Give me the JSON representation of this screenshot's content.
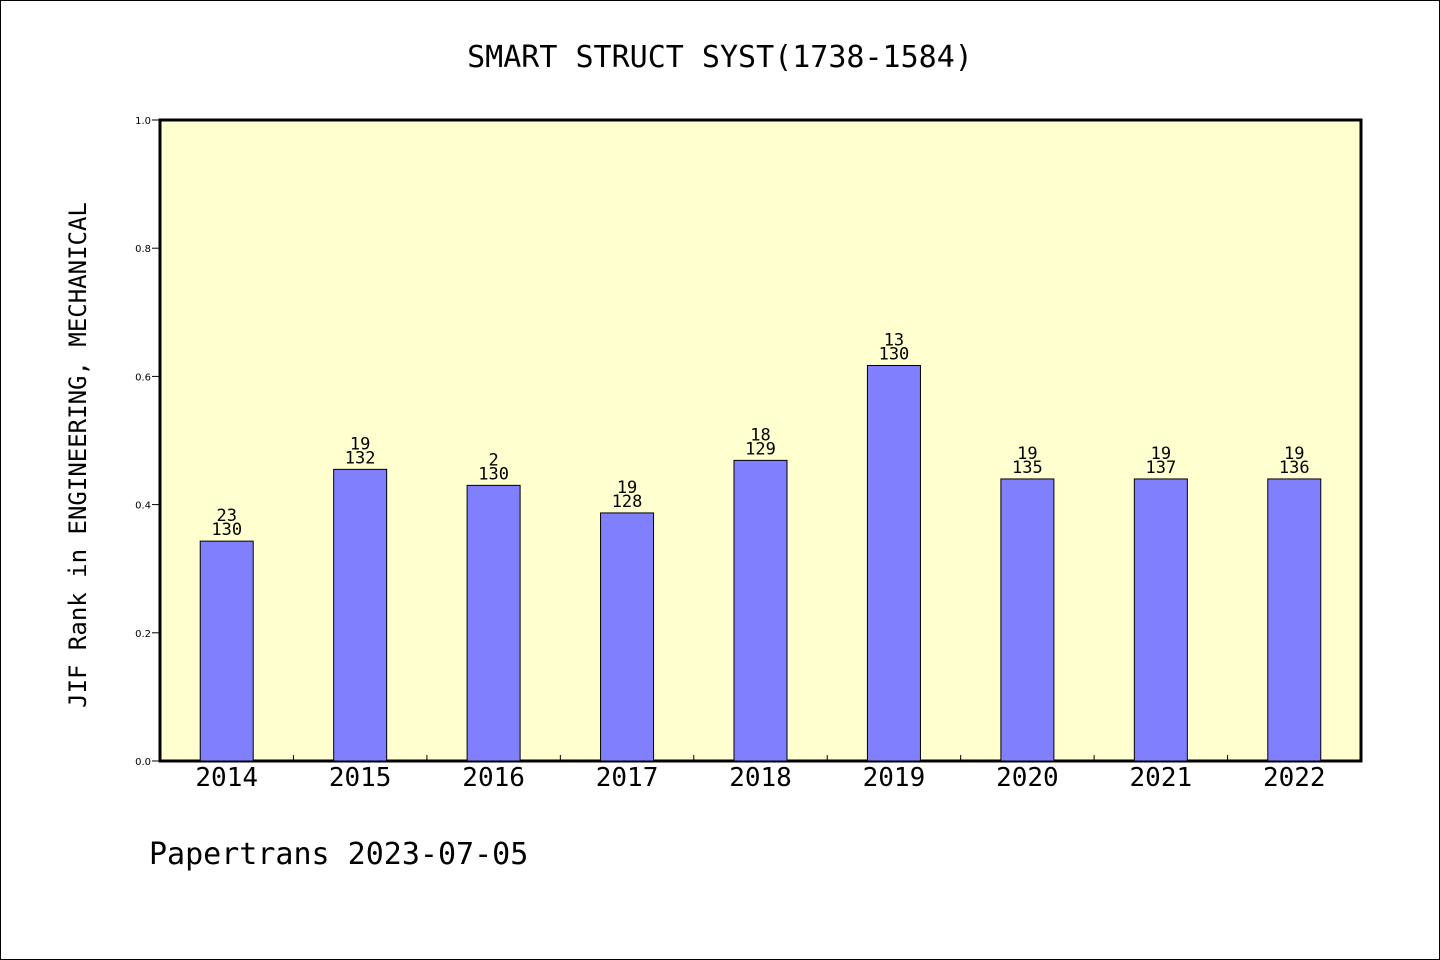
{
  "chart_data": {
    "type": "bar",
    "title": "SMART STRUCT SYST(1738-1584)",
    "xlabel": "",
    "ylabel": "JIF Rank in ENGINEERING, MECHANICAL",
    "categories": [
      "2014",
      "2015",
      "2016",
      "2017",
      "2018",
      "2019",
      "2020",
      "2021",
      "2022"
    ],
    "values": [
      0.343,
      0.455,
      0.43,
      0.387,
      0.469,
      0.617,
      0.44,
      0.44,
      0.44
    ],
    "ranks": [
      "23",
      "19",
      "2",
      "19",
      "18",
      "13",
      "19",
      "19",
      "19"
    ],
    "totals": [
      "130",
      "132",
      "130",
      "128",
      "129",
      "130",
      "135",
      "137",
      "136"
    ],
    "ylim": [
      0,
      1.0
    ],
    "yticks": [
      "0.0",
      "0.2",
      "0.4",
      "0.6",
      "0.8",
      "1.0"
    ],
    "grid": false,
    "colors": {
      "bar": "#8080ff",
      "plot_background": "#ffffd0",
      "axis": "#000000"
    }
  },
  "footer": {
    "credit": "Papertrans 2023-07-05"
  }
}
